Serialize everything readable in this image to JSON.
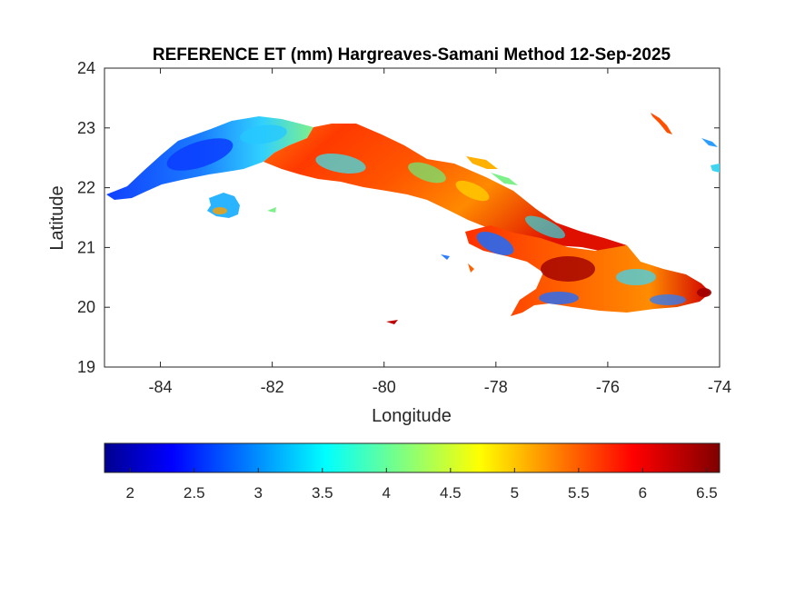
{
  "title": "REFERENCE ET (mm) Hargreaves-Samani Method  12-Sep-2025",
  "map": {
    "xlabel": "Longitude",
    "ylabel": "Latitude",
    "xlim": [
      -85,
      -74
    ],
    "ylim": [
      19,
      24
    ],
    "xticks": [
      -84,
      -82,
      -80,
      -78,
      -76,
      -74
    ],
    "yticks": [
      19,
      20,
      21,
      22,
      23,
      24
    ],
    "grid": false,
    "colormap": "jet"
  },
  "colorbar": {
    "orientation": "horizontal",
    "placement": "below",
    "range": [
      1.8,
      6.6
    ],
    "ticks": [
      2,
      2.5,
      3,
      3.5,
      4,
      4.5,
      5,
      5.5,
      6,
      6.5
    ],
    "tick_labels": [
      "2",
      "2.5",
      "3",
      "3.5",
      "4",
      "4.5",
      "5",
      "5.5",
      "6",
      "6.5"
    ],
    "colors": [
      "#00008f",
      "#0000ff",
      "#00ffff",
      "#ffff00",
      "#ff0000",
      "#800000"
    ]
  },
  "chart_data": {
    "type": "heatmap",
    "title": "REFERENCE ET (mm) Hargreaves-Samani Method  12-Sep-2025",
    "xlabel": "Longitude",
    "ylabel": "Latitude",
    "xlim": [
      -85,
      -74
    ],
    "ylim": [
      19,
      24
    ],
    "value_range": [
      1.8,
      6.6
    ],
    "regions": [
      {
        "lon": -84.1,
        "lat": 22.3,
        "value": 2.4
      },
      {
        "lon": -83.3,
        "lat": 22.7,
        "value": 2.3
      },
      {
        "lon": -82.5,
        "lat": 22.9,
        "value": 3.3
      },
      {
        "lon": -82.0,
        "lat": 22.5,
        "value": 5.3
      },
      {
        "lon": -81.2,
        "lat": 22.8,
        "value": 5.7
      },
      {
        "lon": -80.5,
        "lat": 22.4,
        "value": 4.2
      },
      {
        "lon": -79.8,
        "lat": 22.2,
        "value": 5.6
      },
      {
        "lon": -79.0,
        "lat": 21.8,
        "value": 5.5
      },
      {
        "lon": -78.2,
        "lat": 21.5,
        "value": 5.8
      },
      {
        "lon": -77.7,
        "lat": 20.9,
        "value": 3.0
      },
      {
        "lon": -77.0,
        "lat": 20.7,
        "value": 6.4
      },
      {
        "lon": -76.6,
        "lat": 20.9,
        "value": 5.2
      },
      {
        "lon": -76.0,
        "lat": 20.5,
        "value": 3.6
      },
      {
        "lon": -75.3,
        "lat": 20.4,
        "value": 5.4
      },
      {
        "lon": -74.4,
        "lat": 20.2,
        "value": 6.1
      },
      {
        "lon": -82.8,
        "lat": 21.7,
        "value": 3.8
      }
    ]
  }
}
